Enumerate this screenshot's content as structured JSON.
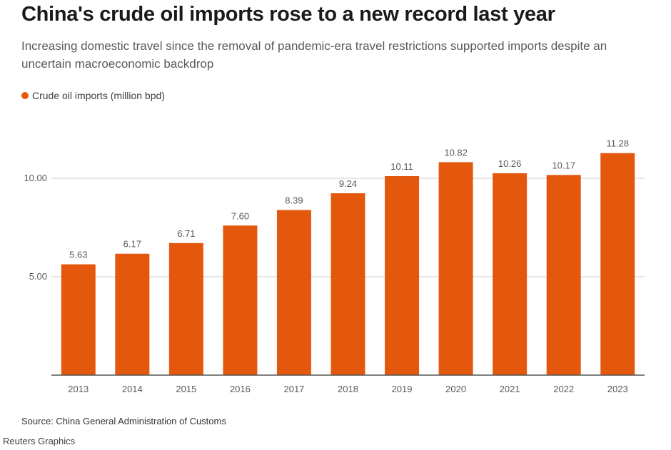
{
  "title": "China's crude oil imports rose to a new record last year",
  "subtitle": "Increasing domestic travel since the removal of pandemic-era travel restrictions supported imports despite an uncertain macroeconomic backdrop",
  "source": "Source: China General Administration of Customs",
  "credit": "Reuters Graphics",
  "colors": {
    "bar": "#e4580e",
    "grid": "#cccccc",
    "baseline": "#555555"
  },
  "chart_data": {
    "type": "bar",
    "categories": [
      "2013",
      "2014",
      "2015",
      "2016",
      "2017",
      "2018",
      "2019",
      "2020",
      "2021",
      "2022",
      "2023"
    ],
    "series": [
      {
        "name": "Crude oil imports (million bpd)",
        "values": [
          5.63,
          6.17,
          6.71,
          7.6,
          8.39,
          9.24,
          10.11,
          10.82,
          10.26,
          10.17,
          11.28
        ]
      }
    ],
    "data_labels": [
      "5.63",
      "6.17",
      "6.71",
      "7.60",
      "8.39",
      "9.24",
      "10.11",
      "10.82",
      "10.26",
      "10.17",
      "11.28"
    ],
    "y_ticks": [
      5.0,
      10.0
    ],
    "y_tick_labels": [
      "5.00",
      "10.00"
    ],
    "ylim": [
      0,
      12.9
    ],
    "grid": true,
    "legend_position": "top-left"
  }
}
